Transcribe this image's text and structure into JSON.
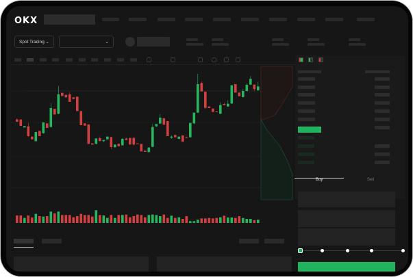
{
  "header": {
    "logo": "OKX"
  },
  "market_selector": {
    "label": "Spot Trading",
    "chevron": "chevron-down-icon"
  },
  "order_form": {
    "buy_tab": "Buy",
    "sell_tab": "Sell",
    "slider_percent": 0
  },
  "colors": {
    "up": "#26b75e",
    "down": "#d4403f",
    "background": "#161616",
    "accent": "#22b35e"
  },
  "chart_data": {
    "type": "candlestick",
    "candles": [
      [
        185,
        190,
        175,
        175
      ],
      [
        185,
        185,
        157,
        157
      ],
      [
        150,
        156,
        150,
        156
      ],
      [
        155,
        170,
        108,
        112
      ],
      [
        110,
        110,
        98,
        98
      ],
      [
        90,
        130,
        88,
        130
      ],
      [
        135,
        135,
        112,
        112
      ],
      [
        125,
        172,
        122,
        172
      ],
      [
        168,
        168,
        148,
        148
      ],
      [
        152,
        258,
        150,
        235
      ],
      [
        232,
        232,
        207,
        207
      ],
      [
        210,
        332,
        208,
        295
      ],
      [
        302,
        302,
        288,
        288
      ],
      [
        293,
        293,
        282,
        282
      ],
      [
        295,
        305,
        262,
        262
      ],
      [
        282,
        282,
        275,
        275
      ],
      [
        285,
        285,
        222,
        222
      ],
      [
        222,
        222,
        160,
        160
      ],
      [
        168,
        168,
        158,
        158
      ],
      [
        163,
        163,
        78,
        78
      ],
      [
        80,
        82,
        75,
        75
      ],
      [
        78,
        102,
        76,
        102
      ],
      [
        103,
        110,
        90,
        90
      ],
      [
        90,
        95,
        85,
        95
      ],
      [
        98,
        110,
        96,
        110
      ],
      [
        108,
        108,
        55,
        64
      ],
      [
        63,
        75,
        62,
        75
      ],
      [
        78,
        80,
        66,
        68
      ],
      [
        72,
        103,
        70,
        100
      ],
      [
        102,
        105,
        95,
        95
      ],
      [
        104,
        104,
        75,
        75
      ],
      [
        104,
        108,
        70,
        75
      ],
      [
        80,
        80,
        78,
        78
      ],
      [
        78,
        78,
        45,
        45
      ],
      [
        48,
        48,
        43,
        43
      ],
      [
        42,
        62,
        40,
        62
      ],
      [
        65,
        165,
        63,
        152
      ],
      [
        155,
        165,
        153,
        165
      ],
      [
        167,
        208,
        165,
        193
      ],
      [
        190,
        190,
        162,
        162
      ],
      [
        178,
        178,
        112,
        112
      ],
      [
        105,
        115,
        100,
        110
      ],
      [
        117,
        117,
        107,
        107
      ],
      [
        100,
        110,
        98,
        110
      ],
      [
        115,
        115,
        87,
        87
      ],
      [
        107,
        110,
        105,
        104
      ],
      [
        107,
        170,
        105,
        170
      ],
      [
        168,
        215,
        165,
        215
      ],
      [
        215,
        385,
        213,
        340
      ],
      [
        345,
        352,
        308,
        308
      ],
      [
        307,
        307,
        232,
        236
      ],
      [
        242,
        242,
        235,
        235
      ],
      [
        233,
        233,
        218,
        218
      ],
      [
        220,
        222,
        217,
        217
      ],
      [
        210,
        260,
        208,
        248
      ],
      [
        253,
        258,
        248,
        248
      ],
      [
        242,
        270,
        240,
        254
      ],
      [
        255,
        335,
        253,
        335
      ],
      [
        340,
        340,
        303,
        303
      ],
      [
        303,
        303,
        287,
        287
      ],
      [
        283,
        320,
        281,
        310
      ],
      [
        310,
        345,
        308,
        337
      ],
      [
        338,
        375,
        336,
        363
      ],
      [
        338,
        338,
        310,
        318
      ],
      [
        313,
        350,
        311,
        330
      ]
    ],
    "volume": [
      33,
      33,
      22,
      33,
      24,
      40,
      30,
      28,
      30,
      50,
      42,
      50,
      35,
      35,
      35,
      25,
      30,
      40,
      35,
      35,
      28,
      56,
      35,
      33,
      22,
      35,
      22,
      35,
      35,
      37,
      25,
      30,
      37,
      35,
      25,
      35,
      37,
      35,
      30,
      37,
      22,
      32,
      22,
      25,
      18,
      30,
      8,
      8,
      14,
      20,
      20,
      22,
      20,
      22,
      25,
      32,
      24,
      24,
      22,
      30,
      22,
      18,
      18,
      12,
      14
    ]
  }
}
